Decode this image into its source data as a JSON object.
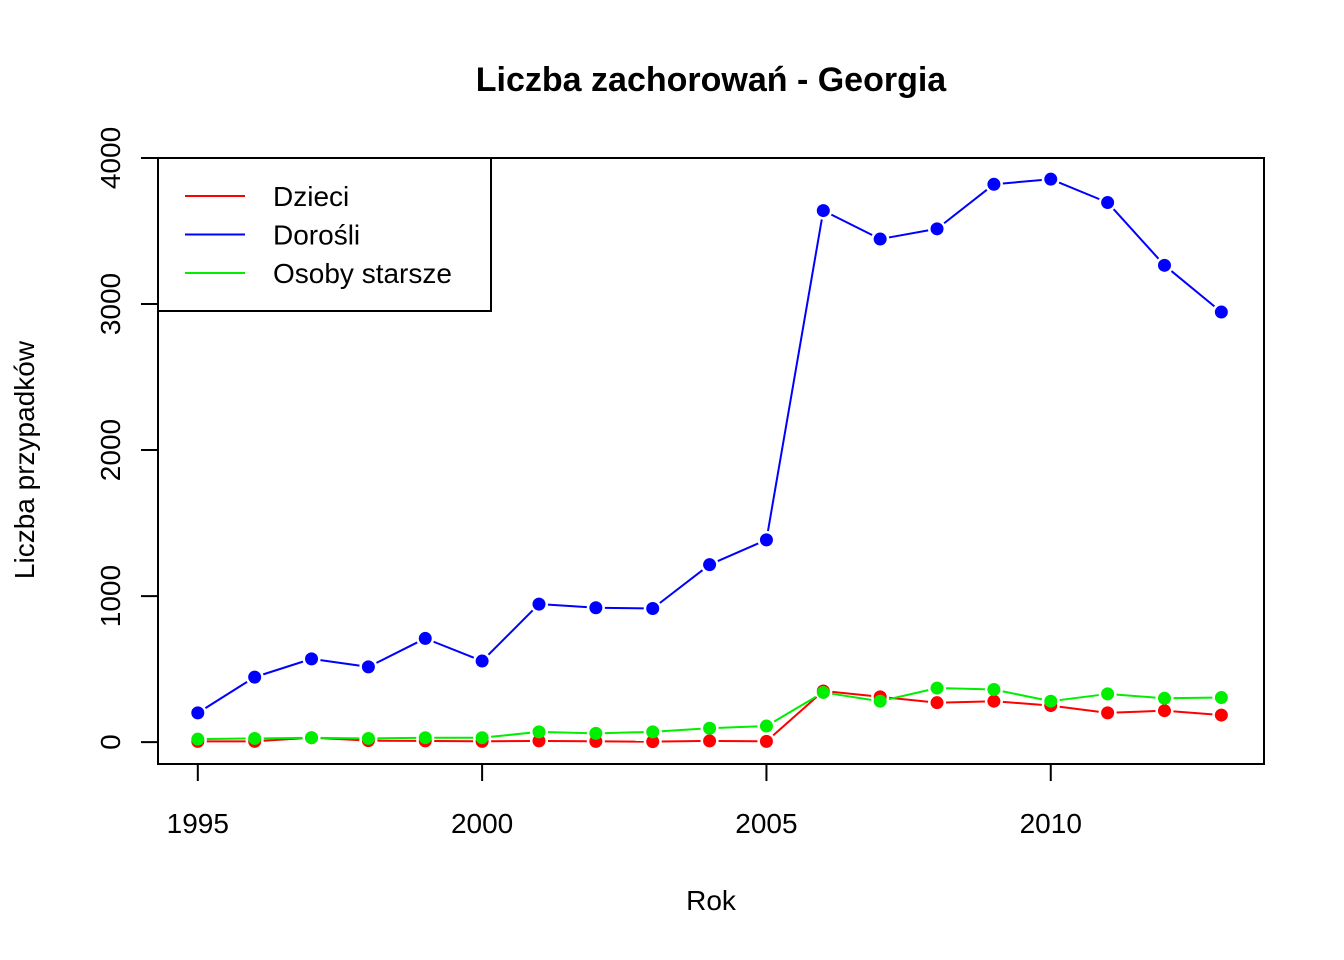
{
  "chart_data": {
    "type": "line",
    "title": "Liczba zachorowań -  Georgia",
    "xlabel": "Rok",
    "ylabel": "Liczba przypadków",
    "xlim": [
      1994.3,
      2013.75
    ],
    "ylim": [
      -150,
      4000
    ],
    "x_ticks": [
      "1995",
      "2000",
      "2005",
      "2010"
    ],
    "y_ticks": [
      "0",
      "1000",
      "2000",
      "3000",
      "4000"
    ],
    "legend_position": "top-left",
    "grid": false,
    "x": [
      1995,
      1996,
      1997,
      1998,
      1999,
      2000,
      2001,
      2002,
      2003,
      2004,
      2005,
      2006,
      2007,
      2008,
      2009,
      2010,
      2011,
      2012,
      2013
    ],
    "series": [
      {
        "name": "Dzieci",
        "color": "#ff0000",
        "values": [
          5,
          5,
          30,
          10,
          8,
          5,
          8,
          5,
          3,
          8,
          5,
          350,
          310,
          270,
          280,
          250,
          200,
          215,
          185
        ]
      },
      {
        "name": "Dorośli",
        "color": "#0000ff",
        "values": [
          200,
          445,
          570,
          515,
          710,
          555,
          945,
          920,
          915,
          1215,
          1385,
          3640,
          3445,
          3515,
          3820,
          3855,
          3695,
          3265,
          2945
        ]
      },
      {
        "name": "Osoby starsze",
        "color": "#00ee00",
        "values": [
          20,
          25,
          30,
          25,
          30,
          30,
          70,
          60,
          70,
          95,
          110,
          340,
          280,
          370,
          360,
          280,
          330,
          300,
          305
        ]
      }
    ]
  }
}
